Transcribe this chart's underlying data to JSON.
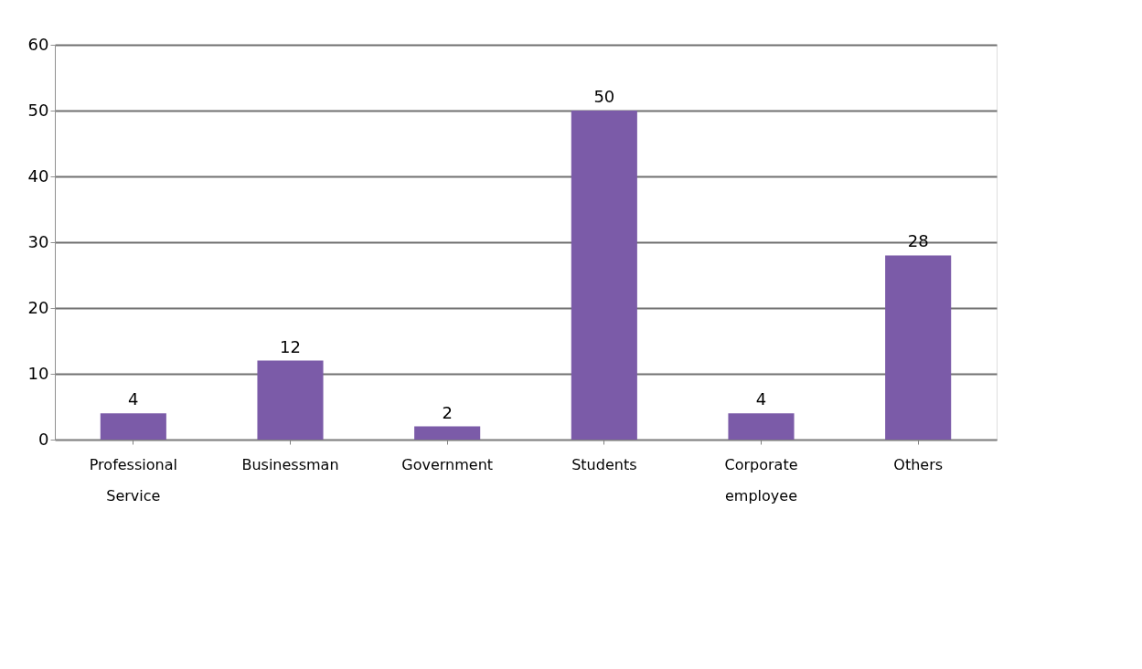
{
  "chart_data": {
    "type": "bar",
    "categories": [
      "Professional Service",
      "Businessman",
      "Government",
      "Students",
      "Corporate employee",
      "Others"
    ],
    "values": [
      4,
      12,
      2,
      50,
      4,
      28
    ],
    "color": "#7b5ba8",
    "ylim": [
      0,
      60
    ],
    "yticks": [
      0,
      10,
      20,
      30,
      40,
      50,
      60
    ],
    "grid": "y",
    "data_labels": true
  }
}
